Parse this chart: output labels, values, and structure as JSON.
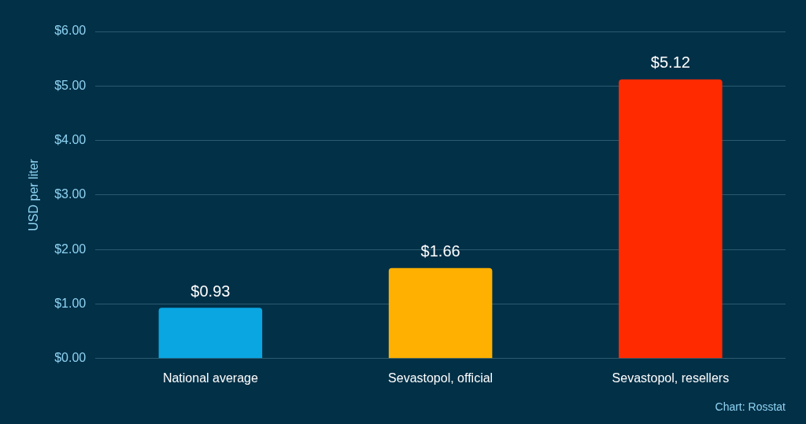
{
  "chart_data": {
    "type": "bar",
    "ylabel": "USD per liter",
    "categories": [
      "National average",
      "Sevastopol, official",
      "Sevastopol, resellers"
    ],
    "values": [
      0.93,
      1.66,
      5.12
    ],
    "colors": [
      "#0aa6e2",
      "#ffb000",
      "#ff2a00"
    ],
    "value_labels": [
      "$0.93",
      "$1.66",
      "$5.12"
    ],
    "ylim": [
      0,
      6
    ],
    "yticks": [
      {
        "value": 0,
        "label": "$0.00"
      },
      {
        "value": 1,
        "label": "$1.00"
      },
      {
        "value": 2,
        "label": "$2.00"
      },
      {
        "value": 3,
        "label": "$3.00"
      },
      {
        "value": 4,
        "label": "$4.00"
      },
      {
        "value": 5,
        "label": "$5.00"
      },
      {
        "value": 6,
        "label": "$6.00"
      }
    ],
    "grid": "y",
    "legend": false,
    "annotations": [
      "Chart: Rosstat"
    ]
  }
}
